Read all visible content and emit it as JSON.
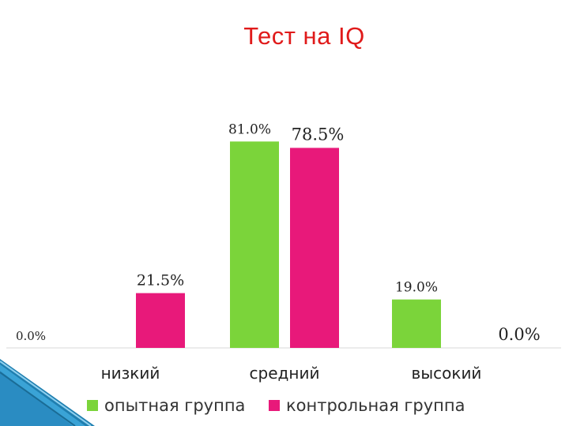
{
  "colors": {
    "experimental": "#7bd43a",
    "control": "#e8197a",
    "title": "#e01a1a"
  },
  "chart_data": {
    "type": "bar",
    "title": "Тест на IQ",
    "xlabel": "",
    "ylabel": "",
    "categories": [
      "низкий",
      "средний",
      "высокий"
    ],
    "ylim": [
      0,
      100
    ],
    "grid": false,
    "legend_position": "bottom",
    "series": [
      {
        "name": "опытная группа",
        "values": [
          0.0,
          81.0,
          19.0
        ],
        "labels": [
          "0.0%",
          "81.0%",
          "19.0%"
        ]
      },
      {
        "name": "контрольная группа",
        "values": [
          21.5,
          78.5,
          0.0
        ],
        "labels": [
          "21.5%",
          "78.5%",
          "0.0%"
        ]
      }
    ]
  }
}
